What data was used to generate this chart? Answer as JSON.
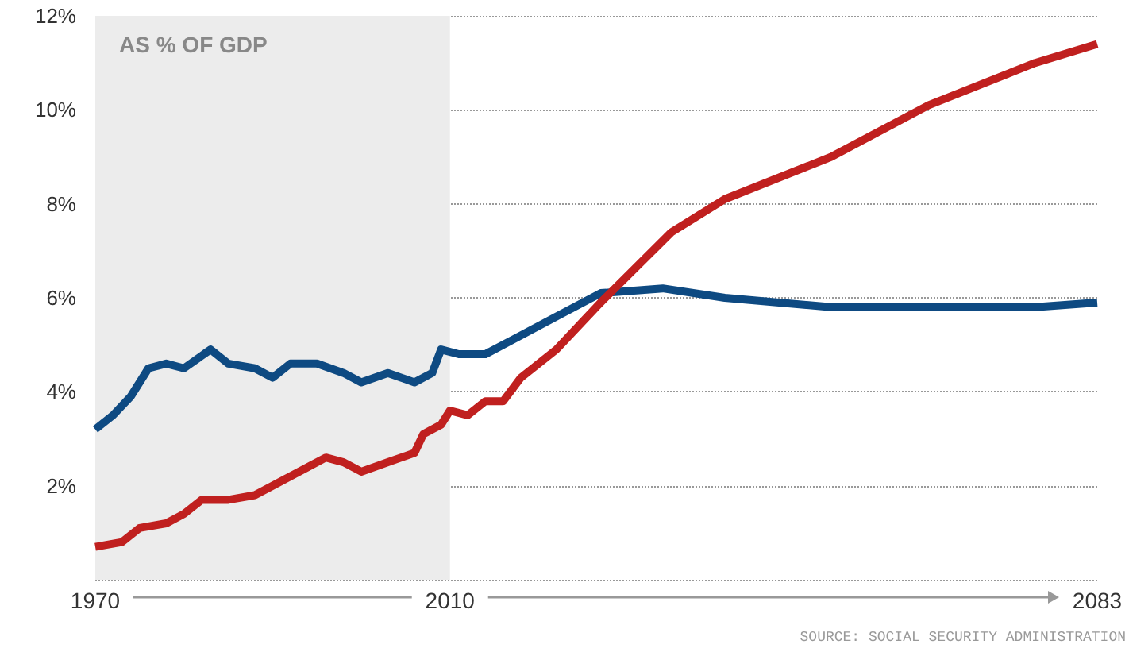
{
  "chart_data": {
    "type": "line",
    "xlim": [
      1970,
      2083
    ],
    "xticks": [
      1970,
      2010,
      2083
    ],
    "ylim": [
      0,
      12
    ],
    "yticks": [
      {
        "value": 0,
        "label": null
      },
      {
        "value": 2,
        "label": "2%"
      },
      {
        "value": 4,
        "label": "4%"
      },
      {
        "value": 6,
        "label": "6%"
      },
      {
        "value": 8,
        "label": "8%"
      },
      {
        "value": 10,
        "label": "10%"
      },
      {
        "value": 12,
        "label": "12%"
      }
    ],
    "grid": "y",
    "line_style": "solid",
    "marker": "none",
    "bands": [
      {
        "axis": "x",
        "from": 1970,
        "to": 2010,
        "label": "AS % OF GDP",
        "color": "#ececec"
      }
    ],
    "series": [
      {
        "color": "#0e4a82",
        "x": [
          1970,
          1972,
          1974,
          1976,
          1978,
          1980,
          1983,
          1985,
          1988,
          1990,
          1992,
          1995,
          1998,
          2000,
          2003,
          2006,
          2008,
          2009,
          2011,
          2014,
          2018,
          2022,
          2027,
          2034,
          2041,
          2053,
          2064,
          2076,
          2083
        ],
        "values": [
          3.2,
          3.5,
          3.9,
          4.5,
          4.6,
          4.5,
          4.9,
          4.6,
          4.5,
          4.3,
          4.6,
          4.6,
          4.4,
          4.2,
          4.4,
          4.2,
          4.4,
          4.9,
          4.8,
          4.8,
          5.2,
          5.6,
          6.1,
          6.2,
          6.0,
          5.8,
          5.8,
          5.8,
          5.9
        ]
      },
      {
        "color": "#c0201f",
        "x": [
          1970,
          1973,
          1975,
          1978,
          1980,
          1982,
          1985,
          1988,
          1991,
          1994,
          1996,
          1998,
          2000,
          2003,
          2006,
          2007,
          2009,
          2010,
          2012,
          2014,
          2016,
          2018,
          2022,
          2027,
          2035,
          2041,
          2053,
          2064,
          2076,
          2083
        ],
        "values": [
          0.7,
          0.8,
          1.1,
          1.2,
          1.4,
          1.7,
          1.7,
          1.8,
          2.1,
          2.4,
          2.6,
          2.5,
          2.3,
          2.5,
          2.7,
          3.1,
          3.3,
          3.6,
          3.5,
          3.8,
          3.8,
          4.3,
          4.9,
          5.9,
          7.4,
          8.1,
          9.0,
          10.1,
          11.0,
          11.4
        ]
      }
    ],
    "annotations": [
      "SOURCE: SOCIAL SECURITY ADMINISTRATION"
    ]
  }
}
